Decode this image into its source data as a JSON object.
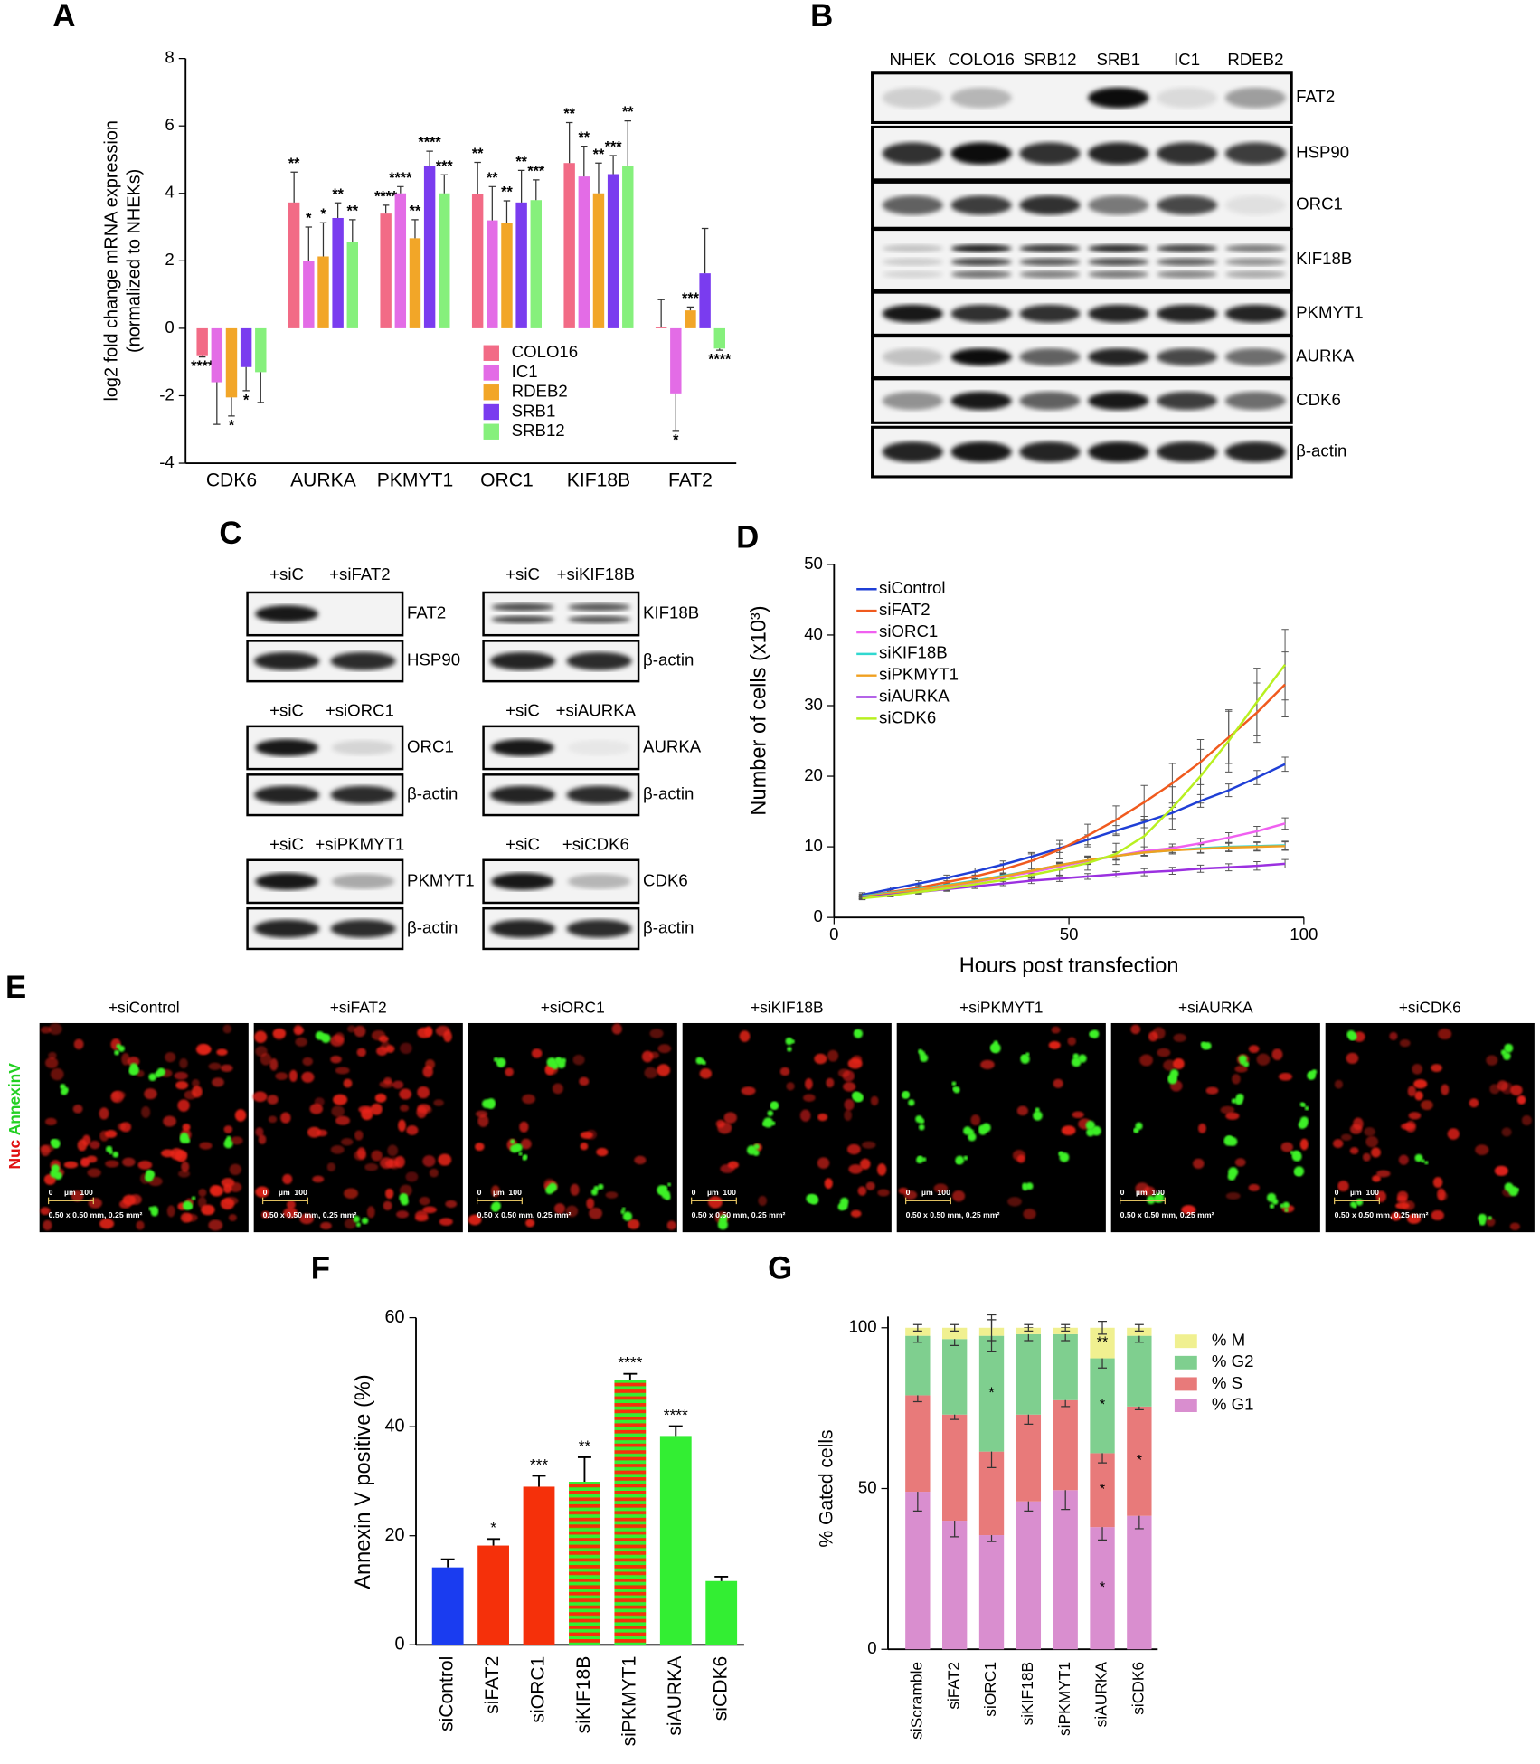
{
  "panel_labels": [
    "A",
    "B",
    "C",
    "D",
    "E",
    "F",
    "G"
  ],
  "chart_data": [
    {
      "type": "bar",
      "ylabel": [
        "log2 fold change mRNA expression",
        "(normalized to NHEKs)"
      ],
      "categories": [
        "CDK6",
        "AURKA",
        "PKMYT1",
        "ORC1",
        "KIF18B",
        "FAT2"
      ],
      "ylim": [
        -4,
        8
      ],
      "yticks": [
        -4,
        -2,
        0,
        2,
        4,
        6,
        8
      ],
      "legend": "lower-center",
      "series": [
        {
          "name": "COLO16",
          "color": "#f26b86",
          "values": [
            -0.8,
            3.73,
            3.4,
            3.97,
            4.9,
            0.05
          ],
          "errors": [
            0.05,
            0.9,
            0.25,
            0.95,
            1.2,
            0.8
          ],
          "significance": [
            "****",
            "**",
            "****",
            "**",
            "**",
            null
          ]
        },
        {
          "name": "IC1",
          "color": "#e36ce6",
          "values": [
            -1.6,
            2.0,
            4.0,
            3.2,
            4.5,
            -1.93
          ],
          "errors": [
            1.25,
            1.0,
            0.2,
            1.0,
            0.9,
            1.1
          ],
          "significance": [
            null,
            "*",
            "****",
            "**",
            "**",
            "*"
          ]
        },
        {
          "name": "RDEB2",
          "color": "#f2a628",
          "values": [
            -2.05,
            2.13,
            2.67,
            3.13,
            4.0,
            0.53
          ],
          "errors": [
            0.55,
            1.0,
            0.55,
            0.65,
            0.9,
            0.1
          ],
          "significance": [
            "*",
            "*",
            "**",
            "**",
            "**",
            "***"
          ]
        },
        {
          "name": "SRB1",
          "color": "#7a3cef",
          "values": [
            -1.15,
            3.27,
            4.8,
            3.73,
            4.57,
            1.63
          ],
          "errors": [
            0.7,
            0.45,
            0.45,
            0.95,
            0.55,
            1.33
          ],
          "significance": [
            "*",
            "**",
            "****",
            "**",
            "***",
            null
          ]
        },
        {
          "name": "SRB12",
          "color": "#86f07c",
          "values": [
            -1.3,
            2.57,
            4.0,
            3.8,
            4.8,
            -0.6
          ],
          "errors": [
            0.9,
            0.65,
            0.55,
            0.6,
            1.35,
            0.05
          ],
          "significance": [
            null,
            "**",
            "***",
            "***",
            "**",
            "****"
          ]
        }
      ]
    },
    {
      "type": "line",
      "xlabel": "Hours post transfection",
      "ylabel": "Number of cells (x10³)",
      "x": [
        6,
        12,
        18,
        24,
        30,
        36,
        42,
        48,
        54,
        60,
        66,
        72,
        78,
        84,
        90,
        96
      ],
      "xlim": [
        0,
        100
      ],
      "xticks": [
        0,
        50,
        100
      ],
      "ylim": [
        0,
        50
      ],
      "yticks": [
        0,
        10,
        20,
        30,
        40,
        50
      ],
      "legend": "upper-left",
      "series": [
        {
          "name": "siControl",
          "color": "#1f3fd6",
          "values": [
            3.2,
            4,
            4.8,
            5.6,
            6.5,
            7.5,
            8.6,
            9.8,
            11,
            12.3,
            13.5,
            14.8,
            16.5,
            18,
            19.8,
            21.7
          ],
          "errors": [
            0.3,
            0.3,
            0.4,
            0.4,
            0.5,
            0.5,
            0.6,
            0.6,
            0.7,
            0.7,
            0.8,
            0.8,
            0.9,
            0.9,
            1.0,
            1.0
          ]
        },
        {
          "name": "siFAT2",
          "color": "#f05a1e",
          "values": [
            3,
            3.6,
            4.2,
            5,
            5.8,
            6.8,
            8,
            9.6,
            11.6,
            13.8,
            16.3,
            19,
            22,
            25.5,
            29,
            33
          ],
          "errors": [
            0.3,
            0.3,
            0.4,
            0.5,
            0.6,
            0.8,
            1.0,
            1.3,
            1.6,
            2.0,
            2.4,
            2.8,
            3.2,
            3.7,
            4.2,
            4.6
          ]
        },
        {
          "name": "siORC1",
          "color": "#f060f0",
          "values": [
            2.8,
            3.3,
            3.8,
            4.4,
            5,
            5.7,
            6.4,
            7.2,
            8,
            8.7,
            9.4,
            9.8,
            10.5,
            11.3,
            12.2,
            13.3
          ],
          "errors": [
            0.2,
            0.2,
            0.3,
            0.3,
            0.4,
            0.4,
            0.5,
            0.5,
            0.5,
            0.6,
            0.6,
            0.6,
            0.7,
            0.7,
            0.7,
            0.8
          ]
        },
        {
          "name": "siKIF18B",
          "color": "#30d8d0",
          "values": [
            3,
            3.5,
            4,
            4.6,
            5.2,
            5.9,
            6.6,
            7.4,
            8.1,
            8.7,
            9.2,
            9.5,
            9.8,
            10,
            10.1,
            10.2
          ],
          "errors": [
            0.2,
            0.2,
            0.3,
            0.3,
            0.3,
            0.4,
            0.4,
            0.4,
            0.5,
            0.5,
            0.5,
            0.5,
            0.6,
            0.6,
            0.6,
            0.6
          ]
        },
        {
          "name": "siPKMYT1",
          "color": "#f0a020",
          "values": [
            2.9,
            3.4,
            3.9,
            4.5,
            5.1,
            5.8,
            6.6,
            7.4,
            8.1,
            8.7,
            9.2,
            9.5,
            9.7,
            9.9,
            10,
            10.1
          ],
          "errors": [
            0.2,
            0.2,
            0.3,
            0.3,
            0.3,
            0.4,
            0.4,
            0.4,
            0.5,
            0.5,
            0.5,
            0.5,
            0.6,
            0.6,
            0.6,
            0.6
          ]
        },
        {
          "name": "siAURKA",
          "color": "#9b30e0",
          "values": [
            2.8,
            3.2,
            3.6,
            4.0,
            4.4,
            4.8,
            5.2,
            5.5,
            5.8,
            6.1,
            6.4,
            6.6,
            6.9,
            7.1,
            7.3,
            7.6
          ],
          "errors": [
            0.2,
            0.2,
            0.2,
            0.3,
            0.3,
            0.3,
            0.4,
            0.4,
            0.4,
            0.4,
            0.5,
            0.5,
            0.5,
            0.5,
            0.6,
            0.6
          ]
        },
        {
          "name": "siCDK6",
          "color": "#b8f020",
          "values": [
            2.7,
            3.1,
            3.6,
            4.1,
            4.7,
            5.3,
            6,
            6.8,
            7.7,
            9,
            11.5,
            15.5,
            20,
            25,
            30.5,
            35.8
          ],
          "errors": [
            0.2,
            0.2,
            0.3,
            0.3,
            0.4,
            0.5,
            0.6,
            0.8,
            1.0,
            1.5,
            2.2,
            3.0,
            3.8,
            4.4,
            4.8,
            5.0
          ]
        }
      ]
    },
    {
      "type": "bar",
      "ylabel": "Annexin V positive (%)",
      "categories": [
        "siControl",
        "siFAT2",
        "siORC1",
        "siKIF18B",
        "siPKMYT1",
        "siAURKA",
        "siCDK6"
      ],
      "values": [
        14.2,
        18.2,
        29,
        29.9,
        48.5,
        38.3,
        11.7
      ],
      "errors": [
        1.5,
        1.2,
        2,
        4.5,
        1.2,
        1.8,
        0.8
      ],
      "significance": [
        null,
        "*",
        "***",
        "**",
        "****",
        "****",
        null
      ],
      "colors": [
        "#1a3cf0",
        "#f5300a",
        "#f5300a",
        "#f5300a",
        "#f5300a",
        "#33ee33",
        "#33ee33"
      ],
      "stripe_colors": [
        null,
        null,
        null,
        "#33ee33",
        "#33ee33",
        null,
        null
      ],
      "ylim": [
        0,
        60
      ],
      "yticks": [
        0,
        20,
        40,
        60
      ]
    },
    {
      "type": "stacked_bar",
      "ylabel": "% Gated cells",
      "categories": [
        "siScramble",
        "siFAT2",
        "siORC1",
        "siKIF18B",
        "siPKMYT1",
        "siAURKA",
        "siCDK6"
      ],
      "ylim": [
        0,
        100
      ],
      "yticks": [
        0,
        50,
        100
      ],
      "legend": "upper-right",
      "series": [
        {
          "name": "% G1",
          "color": "#d98ecf",
          "values": [
            49,
            40,
            35.5,
            46,
            49.5,
            38,
            41.5
          ],
          "errors": [
            6,
            5,
            2,
            3,
            6,
            4,
            4
          ],
          "annotations": [
            null,
            null,
            null,
            null,
            null,
            "*",
            null
          ]
        },
        {
          "name": "% S",
          "color": "#e87a7a",
          "values": [
            30,
            33,
            26,
            27,
            28,
            23,
            34
          ],
          "errors": [
            2,
            1.5,
            5,
            3,
            2,
            3,
            1
          ],
          "annotations": [
            null,
            null,
            null,
            null,
            null,
            "*",
            "*"
          ]
        },
        {
          "name": "% G2",
          "color": "#7fcf8f",
          "values": [
            18.5,
            23.5,
            36,
            25,
            20.5,
            29.5,
            22
          ],
          "errors": [
            2,
            2,
            5,
            2,
            2,
            3,
            2
          ],
          "annotations": [
            null,
            null,
            "*",
            null,
            null,
            "*",
            null
          ]
        },
        {
          "name": "% M",
          "color": "#f0f090",
          "values": [
            2.5,
            3.5,
            2.5,
            2,
            2,
            9.5,
            2.5
          ],
          "errors": [
            1,
            1,
            4,
            1,
            1,
            2,
            1
          ],
          "annotations": [
            null,
            null,
            null,
            null,
            null,
            "**",
            null
          ]
        }
      ]
    }
  ],
  "blots_b": {
    "lanes": [
      "NHEK",
      "COLO16",
      "SRB12",
      "SRB1",
      "IC1",
      "RDEB2"
    ],
    "rows": [
      "FAT2",
      "HSP90",
      "ORC1",
      "KIF18B",
      "PKMYT1",
      "AURKA",
      "CDK6",
      "β-actin"
    ]
  },
  "blots_c": [
    {
      "lanes": [
        "+siC",
        "+siFAT2"
      ],
      "rows": [
        "FAT2",
        "HSP90"
      ]
    },
    {
      "lanes": [
        "+siC",
        "+siORC1"
      ],
      "rows": [
        "ORC1",
        "β-actin"
      ]
    },
    {
      "lanes": [
        "+siC",
        "+siPKMYT1"
      ],
      "rows": [
        "PKMYT1",
        "β-actin"
      ]
    },
    {
      "lanes": [
        "+siC",
        "+siKIF18B"
      ],
      "rows": [
        "KIF18B",
        "β-actin"
      ]
    },
    {
      "lanes": [
        "+siC",
        "+siAURKA"
      ],
      "rows": [
        "AURKA",
        "β-actin"
      ]
    },
    {
      "lanes": [
        "+siC",
        "+siCDK6"
      ],
      "rows": [
        "CDK6",
        "β-actin"
      ]
    }
  ],
  "micrographs": {
    "channel_labels": [
      "Nuc",
      "AnnexinV"
    ],
    "titles": [
      "+siControl",
      "+siFAT2",
      "+siORC1",
      "+siKIF18B",
      "+siPKMYT1",
      "+siAURKA",
      "+siCDK6"
    ],
    "scale": {
      "zero": "0",
      "unit": "µm",
      "length": "100",
      "area": "0.50 x 0.50 mm, 0.25 mm²"
    }
  }
}
